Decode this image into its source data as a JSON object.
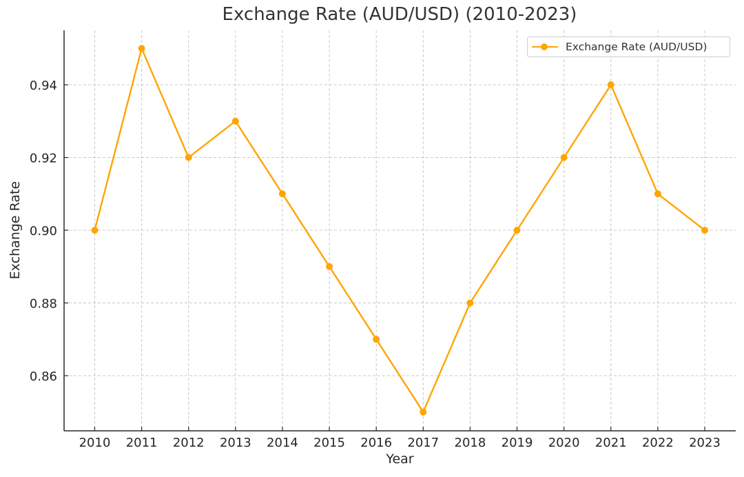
{
  "chart_data": {
    "type": "line",
    "title": "Exchange Rate (AUD/USD) (2010-2023)",
    "xlabel": "Year",
    "ylabel": "Exchange Rate",
    "categories": [
      "2010",
      "2011",
      "2012",
      "2013",
      "2014",
      "2015",
      "2016",
      "2017",
      "2018",
      "2019",
      "2020",
      "2021",
      "2022",
      "2023"
    ],
    "series": [
      {
        "name": "Exchange Rate (AUD/USD)",
        "color": "#FFA500",
        "marker": "circle",
        "values": [
          0.9,
          0.95,
          0.92,
          0.93,
          0.91,
          0.89,
          0.87,
          0.85,
          0.88,
          0.9,
          0.92,
          0.94,
          0.91,
          0.9
        ]
      }
    ],
    "yticks": [
      "0.86",
      "0.88",
      "0.90",
      "0.92",
      "0.94"
    ],
    "ylim": [
      0.845,
      0.955
    ],
    "grid": true,
    "legend_position": "upper right"
  }
}
